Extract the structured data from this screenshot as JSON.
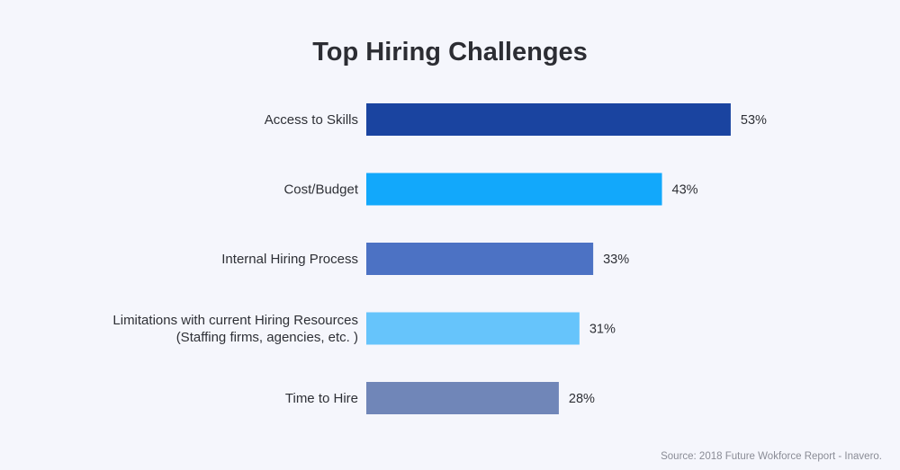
{
  "chart_data": {
    "type": "bar",
    "orientation": "horizontal",
    "title": "Top Hiring Challenges",
    "categories": [
      [
        "Access to Skills"
      ],
      [
        "Cost/Budget"
      ],
      [
        "Internal Hiring Process"
      ],
      [
        "Limitations with current Hiring Resources",
        "(Staffing firms, agencies, etc. )"
      ],
      [
        "Time to Hire"
      ]
    ],
    "values": [
      53,
      43,
      33,
      31,
      28
    ],
    "value_labels": [
      "53%",
      "43%",
      "33%",
      "31%",
      "28%"
    ],
    "bar_colors": [
      "#1a44a0",
      "#12a8fb",
      "#4c72c4",
      "#66c4fb",
      "#7086b8"
    ],
    "unit": "%",
    "grid": false,
    "legend": "none",
    "source": "Source: 2018 Future Wokforce Report - Inavero."
  },
  "colors": {
    "background": "#f5f6fc",
    "text": "#2e3036",
    "title": "#2c2d33",
    "source": "#8a8c96"
  }
}
